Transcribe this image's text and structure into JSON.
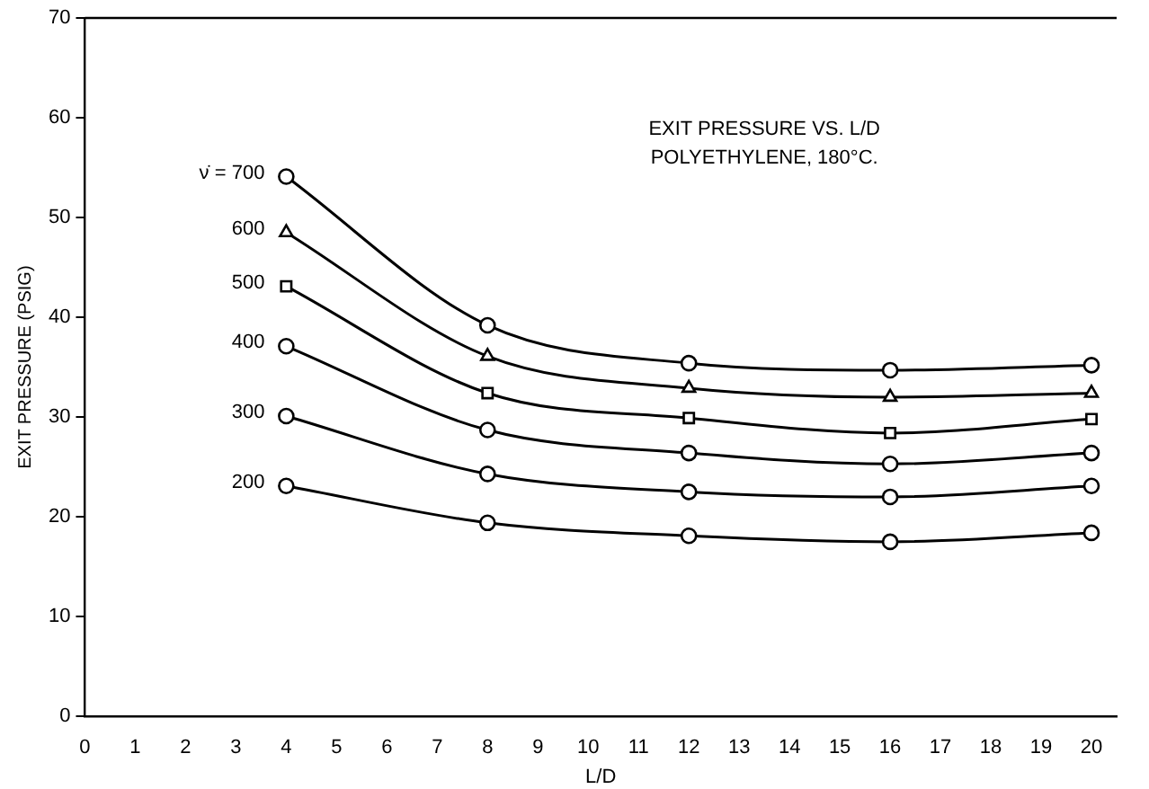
{
  "chart_data": {
    "type": "line",
    "title": "EXIT PRESSURE VS. L/D",
    "subtitle": "POLYETHYLENE, 180°C.",
    "xlabel": "L/D",
    "ylabel": "EXIT PRESSURE (PSIG)",
    "x": [
      4,
      8,
      12,
      16,
      20
    ],
    "series": [
      {
        "name": "ν̇ = 700",
        "color": "#000000",
        "marker": "circle",
        "values": [
          54.1,
          39.2,
          35.4,
          34.7,
          35.2
        ]
      },
      {
        "name": "600",
        "color": "#000000",
        "marker": "triangle",
        "values": [
          48.5,
          36.1,
          32.9,
          32.0,
          32.4
        ]
      },
      {
        "name": "500",
        "color": "#000000",
        "marker": "square",
        "values": [
          43.1,
          32.4,
          29.9,
          28.4,
          29.8
        ]
      },
      {
        "name": "400",
        "color": "#000000",
        "marker": "circle",
        "values": [
          37.1,
          28.7,
          26.4,
          25.3,
          26.4
        ]
      },
      {
        "name": "300",
        "color": "#000000",
        "marker": "circle",
        "values": [
          30.1,
          24.3,
          22.5,
          22.0,
          23.1
        ]
      },
      {
        "name": "200",
        "color": "#000000",
        "marker": "circle",
        "values": [
          23.1,
          19.4,
          18.1,
          17.5,
          18.4
        ]
      }
    ],
    "xlim": [
      0,
      20.5
    ],
    "xticks": [
      0,
      1,
      2,
      3,
      4,
      5,
      6,
      7,
      8,
      9,
      10,
      11,
      12,
      13,
      14,
      15,
      16,
      17,
      18,
      19,
      20
    ],
    "ylim": [
      0,
      70
    ],
    "yticks": [
      0,
      10,
      20,
      30,
      40,
      50,
      60,
      70
    ],
    "grid": false,
    "legend": false,
    "line_style": "solid"
  }
}
